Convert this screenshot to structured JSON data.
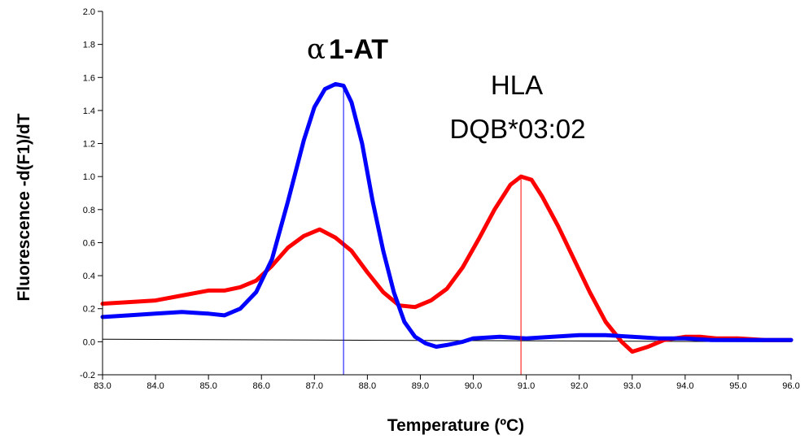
{
  "chart_data": {
    "type": "line",
    "title": "",
    "xlabel": "Temperature (ºC)",
    "ylabel": "Fluorescence -d(F1)/dT",
    "xlim": [
      83.0,
      96.0
    ],
    "ylim": [
      -0.2,
      2.0
    ],
    "x_ticks": [
      "83.0",
      "84.0",
      "85.0",
      "86.0",
      "87.0",
      "88.0",
      "89.0",
      "90.0",
      "91.0",
      "92.0",
      "93.0",
      "94.0",
      "95.0",
      "96.0"
    ],
    "y_ticks": [
      "-0.2",
      "0.0",
      "0.2",
      "0.4",
      "0.6",
      "0.8",
      "1.0",
      "1.2",
      "1.4",
      "1.6",
      "1.8",
      "2.0"
    ],
    "grid": false,
    "series": [
      {
        "color": "#0000ff",
        "x": [
          83.0,
          83.5,
          84.0,
          84.5,
          85.0,
          85.3,
          85.6,
          85.9,
          86.2,
          86.5,
          86.8,
          87.0,
          87.2,
          87.4,
          87.55,
          87.7,
          87.9,
          88.1,
          88.3,
          88.5,
          88.7,
          88.9,
          89.1,
          89.3,
          89.5,
          89.8,
          90.0,
          90.5,
          91.0,
          91.5,
          92.0,
          92.5,
          93.0,
          93.5,
          94.0,
          94.5,
          95.0,
          95.5,
          96.0
        ],
        "y": [
          0.15,
          0.16,
          0.17,
          0.18,
          0.17,
          0.16,
          0.2,
          0.3,
          0.5,
          0.85,
          1.22,
          1.42,
          1.53,
          1.56,
          1.55,
          1.45,
          1.2,
          0.85,
          0.55,
          0.3,
          0.12,
          0.03,
          -0.01,
          -0.03,
          -0.02,
          0.0,
          0.02,
          0.03,
          0.02,
          0.03,
          0.04,
          0.04,
          0.03,
          0.02,
          0.02,
          0.01,
          0.01,
          0.01,
          0.01
        ]
      },
      {
        "color": "#ff0000",
        "x": [
          83.0,
          83.5,
          84.0,
          84.5,
          85.0,
          85.3,
          85.6,
          85.9,
          86.2,
          86.5,
          86.8,
          87.1,
          87.4,
          87.7,
          88.0,
          88.3,
          88.6,
          88.9,
          89.2,
          89.5,
          89.8,
          90.1,
          90.4,
          90.7,
          90.9,
          91.1,
          91.3,
          91.6,
          91.9,
          92.2,
          92.5,
          92.8,
          93.0,
          93.3,
          93.6,
          94.0,
          94.3,
          94.6,
          95.0,
          95.5,
          96.0
        ],
        "y": [
          0.23,
          0.24,
          0.25,
          0.28,
          0.31,
          0.31,
          0.33,
          0.37,
          0.46,
          0.57,
          0.64,
          0.68,
          0.63,
          0.55,
          0.42,
          0.3,
          0.22,
          0.21,
          0.25,
          0.32,
          0.45,
          0.62,
          0.8,
          0.95,
          1.0,
          0.98,
          0.88,
          0.7,
          0.5,
          0.3,
          0.12,
          0.0,
          -0.06,
          -0.03,
          0.01,
          0.03,
          0.03,
          0.02,
          0.02,
          0.01,
          0.01
        ]
      },
      {
        "color": "#000000",
        "x": [
          83.0,
          96.0
        ],
        "y": [
          0.015,
          0.0
        ]
      }
    ],
    "peak_markers": [
      {
        "x": 87.55,
        "color": "#0000ff"
      },
      {
        "x": 90.9,
        "color": "#ff0000"
      }
    ],
    "annotations": [
      {
        "alpha": "α",
        "text": "1-AT"
      },
      {
        "text": "HLA"
      },
      {
        "text": "DQB*03:02"
      }
    ]
  }
}
